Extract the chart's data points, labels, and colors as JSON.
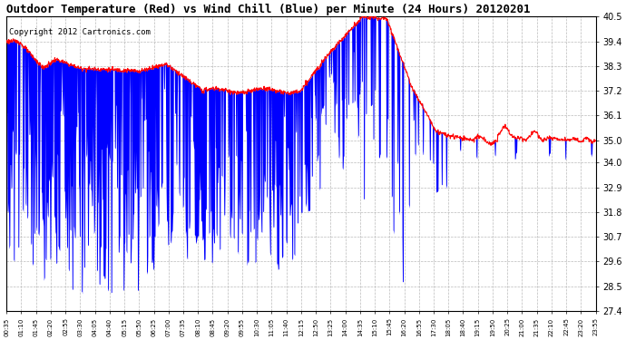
{
  "title": "Outdoor Temperature (Red) vs Wind Chill (Blue) per Minute (24 Hours) 20120201",
  "copyright": "Copyright 2012 Cartronics.com",
  "ylabel_right_ticks": [
    27.4,
    28.5,
    29.6,
    30.7,
    31.8,
    32.9,
    34.0,
    35.0,
    36.1,
    37.2,
    38.3,
    39.4,
    40.5
  ],
  "ylim": [
    27.4,
    40.5
  ],
  "temp_color": "#ff0000",
  "wind_color": "#0000ff",
  "bg_color": "#ffffff",
  "grid_color": "#bbbbbb",
  "title_fontsize": 9,
  "copyright_fontsize": 6.5,
  "xtick_labels": [
    "00:35",
    "01:10",
    "01:45",
    "02:20",
    "02:55",
    "03:30",
    "04:05",
    "04:40",
    "05:15",
    "05:50",
    "06:25",
    "07:00",
    "07:35",
    "08:10",
    "08:45",
    "09:20",
    "09:55",
    "10:30",
    "11:05",
    "11:40",
    "12:15",
    "12:50",
    "13:25",
    "14:00",
    "14:35",
    "15:10",
    "15:45",
    "16:20",
    "16:55",
    "17:30",
    "18:05",
    "18:40",
    "19:15",
    "19:50",
    "20:25",
    "21:00",
    "21:35",
    "22:10",
    "22:45",
    "23:20",
    "23:55"
  ]
}
